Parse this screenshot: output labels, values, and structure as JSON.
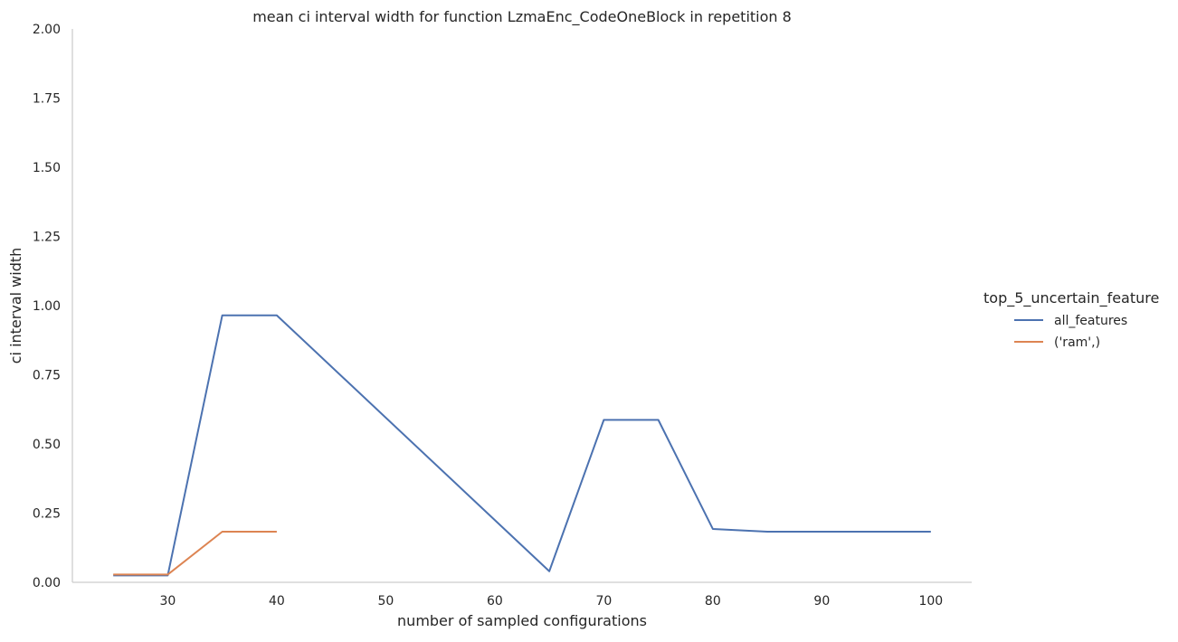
{
  "chart_data": {
    "type": "line",
    "title": "mean ci interval width for function LzmaEnc_CodeOneBlock in repetition 8",
    "xlabel": "number of sampled configurations",
    "ylabel": "ci interval width",
    "xlim": [
      21.25,
      103.75
    ],
    "ylim": [
      0,
      2.0
    ],
    "xticks": [
      30,
      40,
      50,
      60,
      70,
      80,
      90,
      100
    ],
    "yticks": [
      0.0,
      0.25,
      0.5,
      0.75,
      1.0,
      1.25,
      1.5,
      1.75,
      2.0
    ],
    "xtick_labels": [
      "30",
      "40",
      "50",
      "60",
      "70",
      "80",
      "90",
      "100"
    ],
    "ytick_labels": [
      "0.00",
      "0.25",
      "0.50",
      "0.75",
      "1.00",
      "1.25",
      "1.50",
      "1.75",
      "2.00"
    ],
    "grid": false,
    "legend": {
      "title": "top_5_uncertain_feature",
      "placement": "right"
    },
    "series": [
      {
        "name": "all_features",
        "color": "#4c72b0",
        "x": [
          25,
          30,
          35,
          40,
          65,
          70,
          75,
          80,
          85,
          90,
          95,
          100
        ],
        "y": [
          0.025,
          0.025,
          0.965,
          0.965,
          0.04,
          0.587,
          0.587,
          0.193,
          0.183,
          0.183,
          0.183,
          0.183
        ]
      },
      {
        "name": "('ram',)",
        "color": "#dd8452",
        "x": [
          25,
          30,
          35,
          40
        ],
        "y": [
          0.028,
          0.028,
          0.183,
          0.183
        ]
      }
    ]
  }
}
